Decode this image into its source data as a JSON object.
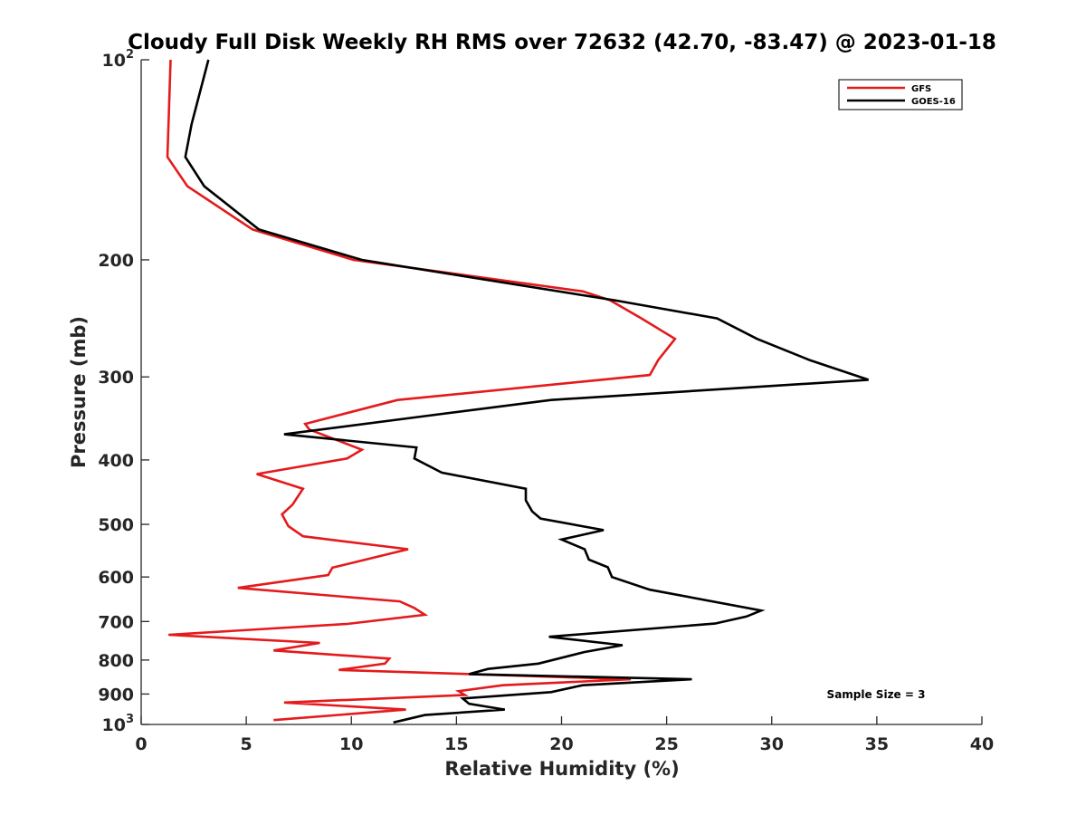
{
  "chart_data": {
    "type": "line",
    "title": "Cloudy Full Disk Weekly RH RMS over 72632 (42.70, -83.47) @ 2023-01-18",
    "xlabel": "Relative Humidity (%)",
    "ylabel": "Pressure (mb)",
    "xlim": [
      0,
      40
    ],
    "ylim": [
      100,
      1000
    ],
    "yscale": "log",
    "yreversed": true,
    "grid": false,
    "legend_position": "top-right",
    "x_ticks": [
      {
        "value": 0,
        "label": "0"
      },
      {
        "value": 5,
        "label": "5"
      },
      {
        "value": 10,
        "label": "10"
      },
      {
        "value": 15,
        "label": "15"
      },
      {
        "value": 20,
        "label": "20"
      },
      {
        "value": 25,
        "label": "25"
      },
      {
        "value": 30,
        "label": "30"
      },
      {
        "value": 35,
        "label": "35"
      },
      {
        "value": 40,
        "label": "40"
      }
    ],
    "y_ticks": [
      {
        "value": 100,
        "base": "10",
        "exp": "2"
      },
      {
        "value": 200,
        "label": "200"
      },
      {
        "value": 300,
        "label": "300"
      },
      {
        "value": 400,
        "label": "400"
      },
      {
        "value": 500,
        "label": "500"
      },
      {
        "value": 600,
        "label": "600"
      },
      {
        "value": 700,
        "label": "700"
      },
      {
        "value": 800,
        "label": "800"
      },
      {
        "value": 900,
        "label": "900"
      },
      {
        "value": 1000,
        "base": "10",
        "exp": "3"
      }
    ],
    "annotation": "Sample Size = 3",
    "series": [
      {
        "name": "GFS",
        "color": "#e41a1c",
        "points": [
          [
            1.4,
            100
          ],
          [
            1.3,
            125
          ],
          [
            1.25,
            140
          ],
          [
            2.2,
            155
          ],
          [
            5.3,
            180
          ],
          [
            10.1,
            200
          ],
          [
            21.0,
            223
          ],
          [
            22.3,
            230
          ],
          [
            23.8,
            245
          ],
          [
            25.4,
            263
          ],
          [
            24.6,
            283
          ],
          [
            24.2,
            298
          ],
          [
            12.2,
            325
          ],
          [
            7.8,
            353
          ],
          [
            8.0,
            360
          ],
          [
            10.5,
            386
          ],
          [
            9.8,
            398
          ],
          [
            5.5,
            420
          ],
          [
            7.7,
            442
          ],
          [
            7.2,
            467
          ],
          [
            6.7,
            483
          ],
          [
            7.0,
            503
          ],
          [
            7.7,
            521
          ],
          [
            12.7,
            545
          ],
          [
            9.1,
            581
          ],
          [
            8.9,
            596
          ],
          [
            4.6,
            623
          ],
          [
            12.3,
            653
          ],
          [
            13.0,
            668
          ],
          [
            13.5,
            684
          ],
          [
            9.8,
            706
          ],
          [
            1.3,
            733
          ],
          [
            8.5,
            754
          ],
          [
            6.3,
            774
          ],
          [
            11.8,
            796
          ],
          [
            11.6,
            810
          ],
          [
            9.4,
            828
          ],
          [
            23.3,
            855
          ],
          [
            17.2,
            873
          ],
          [
            15.1,
            891
          ],
          [
            15.4,
            903
          ],
          [
            6.8,
            927
          ],
          [
            12.6,
            950
          ],
          [
            6.3,
            985
          ]
        ]
      },
      {
        "name": "GOES-16",
        "color": "#000000",
        "points": [
          [
            3.2,
            100
          ],
          [
            2.4,
            125
          ],
          [
            2.1,
            140
          ],
          [
            3.0,
            155
          ],
          [
            5.6,
            180
          ],
          [
            10.5,
            200
          ],
          [
            22.5,
            230
          ],
          [
            27.4,
            245
          ],
          [
            29.3,
            263
          ],
          [
            31.8,
            283
          ],
          [
            34.6,
            303
          ],
          [
            19.5,
            325
          ],
          [
            14.0,
            342
          ],
          [
            6.8,
            366
          ],
          [
            13.1,
            383
          ],
          [
            13.0,
            398
          ],
          [
            14.3,
            418
          ],
          [
            18.3,
            442
          ],
          [
            18.3,
            460
          ],
          [
            18.6,
            478
          ],
          [
            19.0,
            490
          ],
          [
            22.0,
            510
          ],
          [
            20.0,
            527
          ],
          [
            21.1,
            545
          ],
          [
            21.3,
            565
          ],
          [
            22.2,
            580
          ],
          [
            22.4,
            600
          ],
          [
            24.2,
            627
          ],
          [
            29.5,
            674
          ],
          [
            28.8,
            688
          ],
          [
            27.3,
            705
          ],
          [
            19.4,
            738
          ],
          [
            22.9,
            760
          ],
          [
            21.1,
            778
          ],
          [
            18.9,
            810
          ],
          [
            16.5,
            825
          ],
          [
            15.6,
            840
          ],
          [
            26.2,
            855
          ],
          [
            21.0,
            873
          ],
          [
            19.5,
            894
          ],
          [
            15.3,
            914
          ],
          [
            15.6,
            931
          ],
          [
            17.3,
            950
          ],
          [
            13.5,
            968
          ],
          [
            12.0,
            993
          ]
        ]
      }
    ]
  }
}
